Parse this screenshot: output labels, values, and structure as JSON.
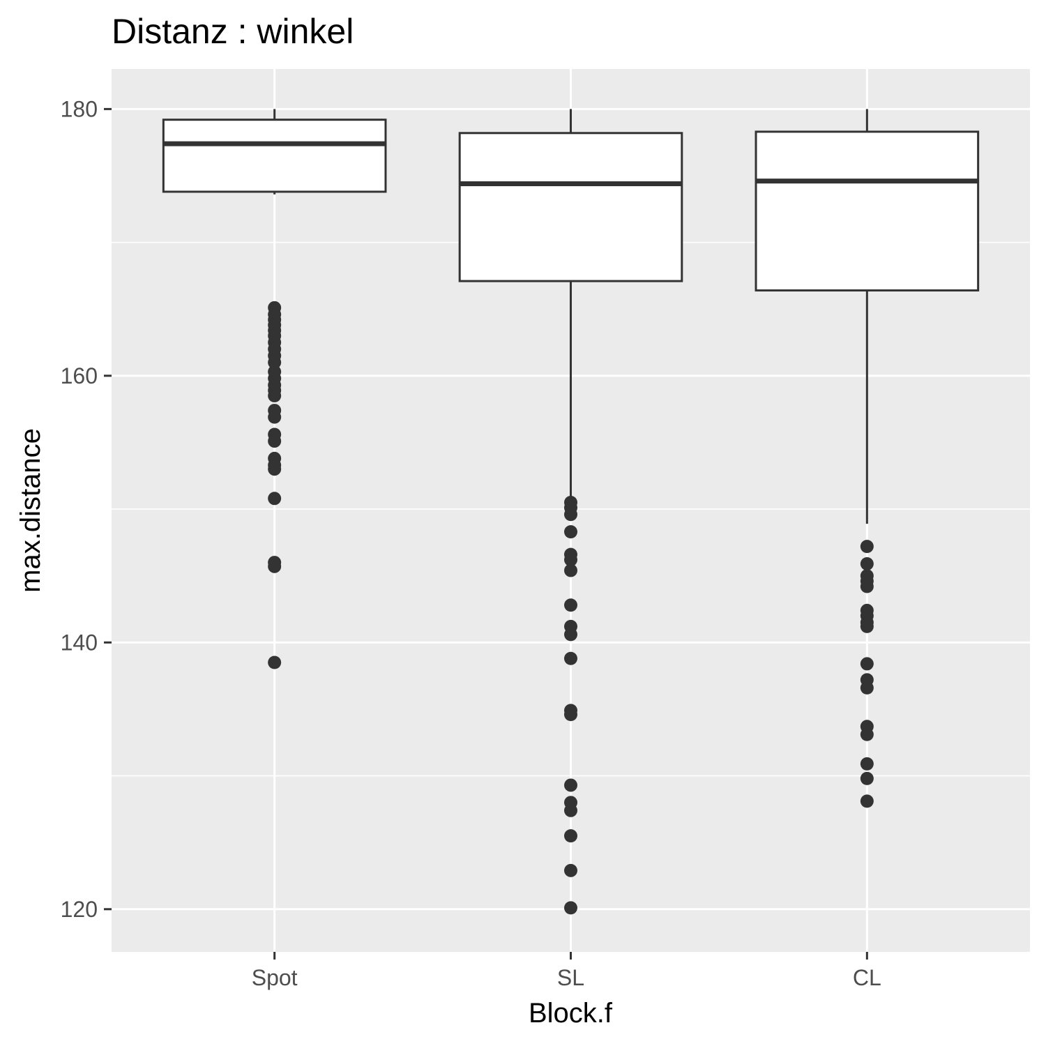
{
  "chart_data": {
    "type": "boxplot",
    "title": "Distanz : winkel",
    "xlabel": "Block.f",
    "ylabel": "max.distance",
    "categories": [
      "Spot",
      "SL",
      "CL"
    ],
    "ylim": [
      116.8,
      183
    ],
    "yticks": [
      120,
      140,
      160,
      180
    ],
    "grid": true,
    "legend": "none",
    "colors": {
      "panel": "#ebebeb",
      "grid": "#ffffff",
      "box_fill": "#ffffff",
      "box_stroke": "#333333",
      "outlier": "#333333",
      "tick_label": "#4d4d4d"
    },
    "series": [
      {
        "category": "Spot",
        "whisker_low": 173.6,
        "q1": 173.8,
        "median": 177.4,
        "q3": 179.2,
        "whisker_high": 180,
        "outliers": [
          165.1,
          164.6,
          164.2,
          163.8,
          163.4,
          163.0,
          162.5,
          162.0,
          161.5,
          161.0,
          160.3,
          159.8,
          159.3,
          158.9,
          158.5,
          157.4,
          156.9,
          155.6,
          155.1,
          153.8,
          153.3,
          153.0,
          150.8,
          146.0,
          145.7,
          138.5
        ]
      },
      {
        "category": "SL",
        "whisker_low": 150.5,
        "q1": 167.1,
        "median": 174.4,
        "q3": 178.2,
        "whisker_high": 180,
        "outliers": [
          150.5,
          150.1,
          149.6,
          148.3,
          146.6,
          146.2,
          145.4,
          142.8,
          141.2,
          140.6,
          138.8,
          134.9,
          134.6,
          129.3,
          128.0,
          127.4,
          125.5,
          122.9,
          120.1
        ]
      },
      {
        "category": "CL",
        "whisker_low": 148.9,
        "q1": 166.4,
        "median": 174.6,
        "q3": 178.3,
        "whisker_high": 180,
        "outliers": [
          147.2,
          145.9,
          145.0,
          144.6,
          144.2,
          142.4,
          142.0,
          141.5,
          141.2,
          138.4,
          137.2,
          136.6,
          133.7,
          133.1,
          130.9,
          129.8,
          128.1
        ]
      }
    ]
  }
}
